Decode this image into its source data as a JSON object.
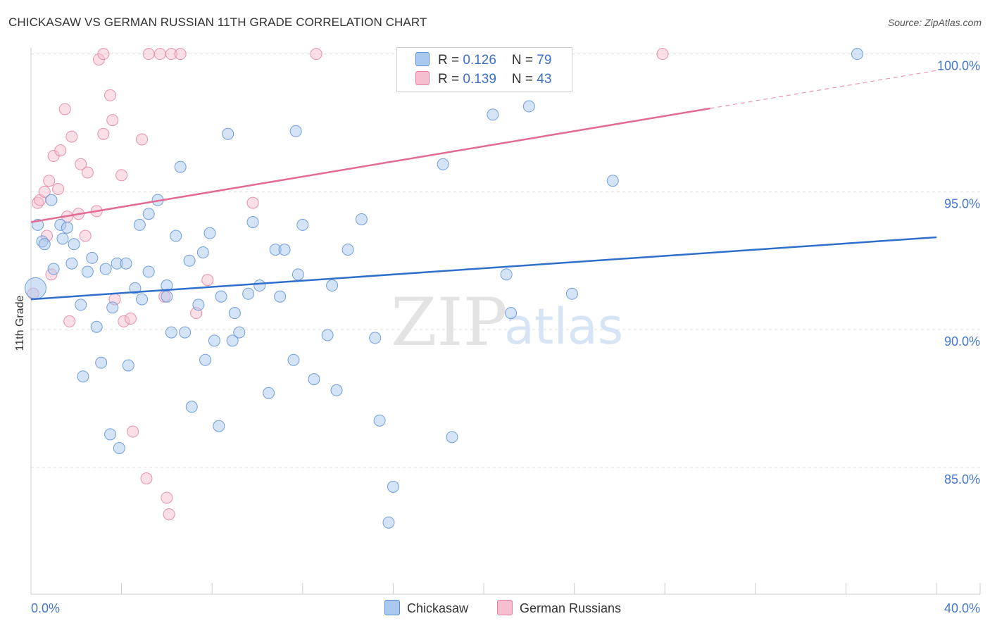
{
  "header": {
    "title": "CHICKASAW VS GERMAN RUSSIAN 11TH GRADE CORRELATION CHART",
    "source": "Source: ZipAtlas.com"
  },
  "watermark": {
    "zip": "ZIP",
    "atlas": "atlas"
  },
  "legend": {
    "chickasaw": {
      "r_label": "R = ",
      "r_value": "0.126",
      "n_label": "N = ",
      "n_value": "79"
    },
    "german": {
      "r_label": "R = ",
      "r_value": "0.139",
      "n_label": "N = ",
      "n_value": "43"
    }
  },
  "bottom_legend": {
    "chickasaw": "Chickasaw",
    "german": "German Russians"
  },
  "colors": {
    "chickasaw_fill": "#aac8ee",
    "chickasaw_stroke": "#5a8fd6",
    "chickasaw_line": "#2f6fcc",
    "german_fill": "#f6bfd0",
    "german_stroke": "#e37fa0",
    "german_line": "#e36a92",
    "axis_text": "#4477cc",
    "grid": "#dddddd"
  },
  "chart_data": {
    "type": "scatter",
    "title": "CHICKASAW VS GERMAN RUSSIAN 11TH GRADE CORRELATION CHART",
    "xlabel": "",
    "ylabel": "11th Grade",
    "xlim": [
      0,
      40
    ],
    "ylim": [
      80.4,
      100.4
    ],
    "x_tick_labels": [
      {
        "x": 0,
        "label": "0.0%"
      },
      {
        "x": 40,
        "label": "40.0%"
      }
    ],
    "y_ticks": [
      {
        "y": 85,
        "label": "85.0%"
      },
      {
        "y": 90,
        "label": "90.0%"
      },
      {
        "y": 95,
        "label": "95.0%"
      },
      {
        "y": 100,
        "label": "100.0%"
      }
    ],
    "grid": true,
    "series": [
      {
        "name": "Chickasaw",
        "R": 0.126,
        "N": 79,
        "trend": {
          "x": [
            0,
            40
          ],
          "y": [
            91.1,
            93.35
          ],
          "dashed_from_x": null
        },
        "points": [
          [
            0.2,
            91.5
          ],
          [
            0.3,
            93.8
          ],
          [
            0.5,
            93.2
          ],
          [
            0.6,
            93.1
          ],
          [
            0.9,
            94.7
          ],
          [
            1.0,
            92.2
          ],
          [
            1.3,
            93.8
          ],
          [
            1.4,
            93.3
          ],
          [
            1.6,
            93.7
          ],
          [
            1.8,
            92.4
          ],
          [
            1.9,
            93.1
          ],
          [
            2.2,
            90.9
          ],
          [
            2.3,
            88.3
          ],
          [
            2.5,
            92.1
          ],
          [
            2.7,
            92.6
          ],
          [
            2.9,
            90.1
          ],
          [
            3.1,
            88.8
          ],
          [
            3.3,
            92.2
          ],
          [
            3.5,
            86.2
          ],
          [
            3.6,
            90.8
          ],
          [
            3.9,
            85.7
          ],
          [
            3.8,
            92.4
          ],
          [
            4.2,
            92.4
          ],
          [
            4.3,
            88.7
          ],
          [
            4.6,
            91.5
          ],
          [
            4.8,
            93.8
          ],
          [
            4.9,
            91.1
          ],
          [
            5.2,
            94.2
          ],
          [
            5.2,
            92.1
          ],
          [
            5.6,
            94.7
          ],
          [
            6.0,
            91.2
          ],
          [
            6.0,
            91.6
          ],
          [
            6.2,
            89.9
          ],
          [
            6.4,
            93.4
          ],
          [
            6.6,
            95.9
          ],
          [
            6.8,
            89.9
          ],
          [
            7.0,
            92.5
          ],
          [
            7.1,
            87.2
          ],
          [
            7.4,
            90.9
          ],
          [
            7.6,
            92.8
          ],
          [
            7.7,
            88.9
          ],
          [
            7.9,
            93.5
          ],
          [
            8.1,
            89.6
          ],
          [
            8.3,
            86.5
          ],
          [
            8.4,
            91.2
          ],
          [
            8.7,
            97.1
          ],
          [
            8.9,
            89.6
          ],
          [
            9.0,
            90.6
          ],
          [
            9.2,
            89.9
          ],
          [
            9.6,
            91.3
          ],
          [
            9.8,
            93.9
          ],
          [
            10.1,
            91.6
          ],
          [
            10.5,
            87.7
          ],
          [
            10.8,
            92.9
          ],
          [
            11.0,
            91.2
          ],
          [
            11.2,
            92.9
          ],
          [
            11.6,
            88.9
          ],
          [
            11.7,
            97.2
          ],
          [
            11.8,
            92.0
          ],
          [
            12.0,
            93.8
          ],
          [
            12.5,
            88.2
          ],
          [
            13.1,
            89.8
          ],
          [
            13.3,
            91.6
          ],
          [
            13.5,
            87.8
          ],
          [
            14.0,
            92.9
          ],
          [
            14.6,
            94.0
          ],
          [
            15.2,
            89.7
          ],
          [
            15.4,
            86.7
          ],
          [
            16.0,
            84.3
          ],
          [
            15.8,
            83.0
          ],
          [
            18.2,
            96.0
          ],
          [
            18.6,
            86.1
          ],
          [
            20.4,
            97.8
          ],
          [
            21.0,
            92.0
          ],
          [
            21.2,
            90.6
          ],
          [
            22.0,
            98.1
          ],
          [
            23.9,
            91.3
          ],
          [
            25.7,
            95.4
          ],
          [
            36.5,
            100.0
          ]
        ]
      },
      {
        "name": "German Russians",
        "R": 0.139,
        "N": 43,
        "trend": {
          "x": [
            0,
            40
          ],
          "y": [
            93.9,
            99.4
          ],
          "dashed_from_x": 30.0
        },
        "points": [
          [
            0.1,
            91.3
          ],
          [
            0.3,
            94.6
          ],
          [
            0.4,
            94.7
          ],
          [
            0.6,
            95.0
          ],
          [
            0.7,
            93.4
          ],
          [
            0.8,
            95.4
          ],
          [
            0.9,
            92.0
          ],
          [
            1.0,
            96.3
          ],
          [
            1.2,
            95.1
          ],
          [
            1.3,
            96.5
          ],
          [
            1.5,
            98.0
          ],
          [
            1.6,
            94.1
          ],
          [
            1.7,
            90.3
          ],
          [
            1.8,
            97.0
          ],
          [
            2.1,
            94.2
          ],
          [
            2.2,
            96.0
          ],
          [
            2.4,
            93.4
          ],
          [
            2.5,
            95.7
          ],
          [
            2.9,
            94.3
          ],
          [
            3.0,
            99.8
          ],
          [
            3.2,
            100.0
          ],
          [
            3.2,
            97.1
          ],
          [
            3.5,
            98.5
          ],
          [
            3.6,
            97.6
          ],
          [
            3.7,
            91.1
          ],
          [
            4.0,
            95.6
          ],
          [
            4.1,
            90.3
          ],
          [
            4.4,
            90.4
          ],
          [
            4.5,
            86.3
          ],
          [
            4.9,
            96.9
          ],
          [
            5.1,
            84.6
          ],
          [
            5.2,
            100.0
          ],
          [
            5.7,
            100.0
          ],
          [
            5.9,
            91.2
          ],
          [
            6.0,
            83.9
          ],
          [
            6.2,
            100.0
          ],
          [
            6.1,
            83.3
          ],
          [
            6.6,
            100.0
          ],
          [
            7.3,
            90.6
          ],
          [
            7.8,
            91.8
          ],
          [
            9.8,
            94.6
          ],
          [
            12.6,
            100.0
          ],
          [
            27.9,
            100.0
          ]
        ]
      }
    ]
  }
}
